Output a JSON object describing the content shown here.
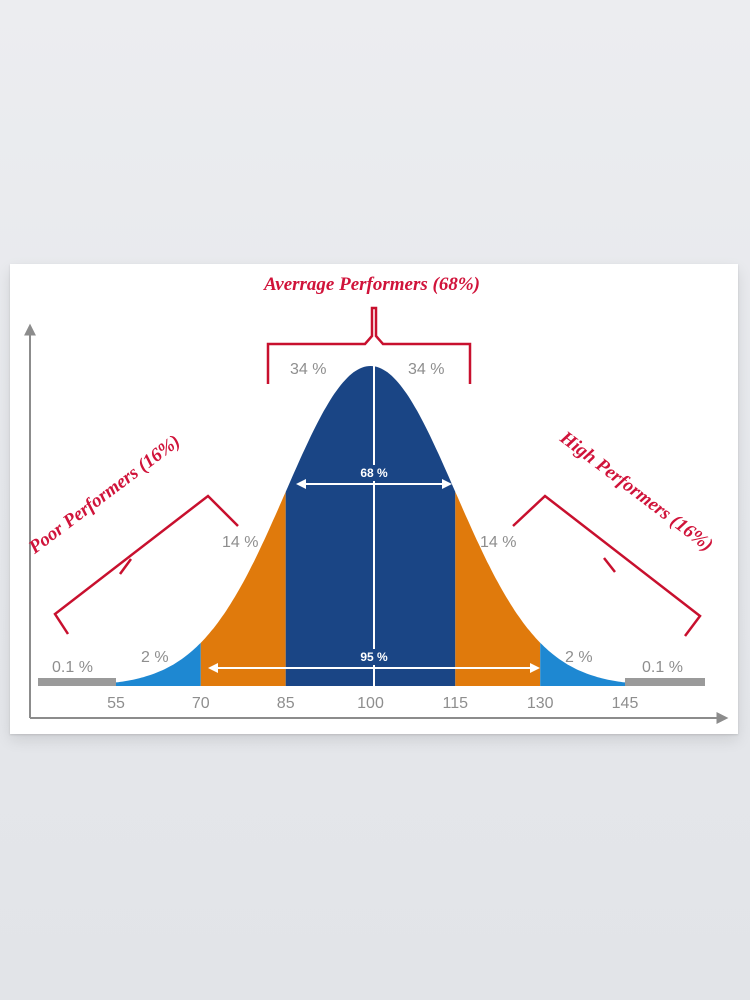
{
  "chart_data": {
    "type": "area",
    "title": "",
    "xlabel": "",
    "ylabel": "",
    "distribution": "normal",
    "mean": 100,
    "sd": 15,
    "x_ticks": [
      55,
      70,
      85,
      100,
      115,
      130,
      145
    ],
    "xlim": [
      45,
      158
    ],
    "segments": [
      {
        "from": 40,
        "to": 55,
        "label": "0.1 %",
        "color": "#9a9a9a"
      },
      {
        "from": 55,
        "to": 70,
        "label": "2 %",
        "color": "#1e88d2"
      },
      {
        "from": 70,
        "to": 85,
        "label": "14 %",
        "color": "#e07a0c"
      },
      {
        "from": 85,
        "to": 100,
        "label": "34 %",
        "color": "#1a4585"
      },
      {
        "from": 100,
        "to": 115,
        "label": "34 %",
        "color": "#1a4585"
      },
      {
        "from": 115,
        "to": 130,
        "label": "14 %",
        "color": "#e07a0c"
      },
      {
        "from": 130,
        "to": 145,
        "label": "2 %",
        "color": "#1e88d2"
      },
      {
        "from": 145,
        "to": 160,
        "label": "0.1 %",
        "color": "#9a9a9a"
      }
    ],
    "spans": [
      {
        "from": 85,
        "to": 115,
        "label": "68 %"
      },
      {
        "from": 70,
        "to": 130,
        "label": "95 %"
      }
    ],
    "annotations": {
      "average": "Averrage Performers (68%)",
      "poor": "Poor Performers (16%)",
      "high": "High Performers (16%)"
    },
    "colors": {
      "axis": "#8c8c8c",
      "bracket": "#c8102e",
      "annotation_text": "#d0133a",
      "label_text": "#8e8e8e"
    }
  }
}
